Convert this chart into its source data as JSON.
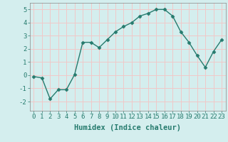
{
  "x": [
    0,
    1,
    2,
    3,
    4,
    5,
    6,
    7,
    8,
    9,
    10,
    11,
    12,
    13,
    14,
    15,
    16,
    17,
    18,
    19,
    20,
    21,
    22,
    23
  ],
  "y": [
    -0.1,
    -0.2,
    -1.8,
    -1.1,
    -1.1,
    0.05,
    2.5,
    2.5,
    2.1,
    2.7,
    3.3,
    3.7,
    4.0,
    4.5,
    4.7,
    5.0,
    5.0,
    4.5,
    3.3,
    2.5,
    1.5,
    0.6,
    1.8,
    2.7
  ],
  "line_color": "#267b6e",
  "marker": "D",
  "markersize": 2.5,
  "linewidth": 1.0,
  "xlabel": "Humidex (Indice chaleur)",
  "xlim": [
    -0.5,
    23.5
  ],
  "ylim": [
    -2.7,
    5.5
  ],
  "yticks": [
    -2,
    -1,
    0,
    1,
    2,
    3,
    4,
    5
  ],
  "xticks": [
    0,
    1,
    2,
    3,
    4,
    5,
    6,
    7,
    8,
    9,
    10,
    11,
    12,
    13,
    14,
    15,
    16,
    17,
    18,
    19,
    20,
    21,
    22,
    23
  ],
  "background_color": "#d4eeee",
  "grid_color": "#f0c8c8",
  "xlabel_fontsize": 7.5,
  "tick_fontsize": 6.5
}
